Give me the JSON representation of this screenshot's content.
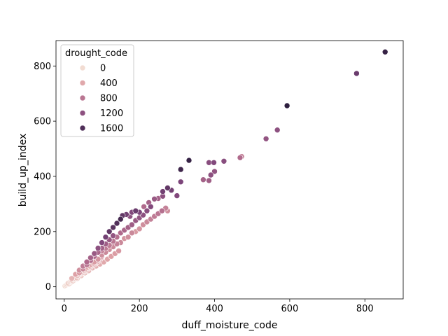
{
  "chart_data": {
    "type": "scatter",
    "title": "",
    "xlabel": "duff_moisture_code",
    "ylabel": "build_up_index",
    "xlim": [
      -22,
      902
    ],
    "ylim": [
      -44,
      892
    ],
    "x_ticks": [
      0,
      200,
      400,
      600,
      800
    ],
    "y_ticks": [
      0,
      200,
      400,
      600,
      800
    ],
    "grid": false,
    "legend": {
      "title": "drought_code",
      "placement": "top-left",
      "entries": [
        {
          "label": "0",
          "value": 0
        },
        {
          "label": "400",
          "value": 400
        },
        {
          "label": "800",
          "value": 800
        },
        {
          "label": "1200",
          "value": 1200
        },
        {
          "label": "1600",
          "value": 1600
        }
      ]
    },
    "hue": {
      "field": "drought_code",
      "min": 0,
      "max": 1800,
      "stops": [
        "#f2dcd2",
        "#dea1a6",
        "#b06a8c",
        "#7c457a",
        "#2d1e3e"
      ]
    },
    "points": [
      [
        2,
        3,
        15
      ],
      [
        5,
        6,
        40
      ],
      [
        8,
        9,
        60
      ],
      [
        10,
        13,
        90
      ],
      [
        12,
        10,
        70
      ],
      [
        15,
        18,
        110
      ],
      [
        18,
        20,
        120
      ],
      [
        20,
        24,
        140
      ],
      [
        22,
        20,
        130
      ],
      [
        25,
        28,
        160
      ],
      [
        28,
        30,
        170
      ],
      [
        30,
        35,
        190
      ],
      [
        33,
        32,
        200
      ],
      [
        35,
        40,
        220
      ],
      [
        38,
        38,
        210
      ],
      [
        40,
        45,
        250
      ],
      [
        42,
        50,
        280
      ],
      [
        45,
        48,
        270
      ],
      [
        48,
        55,
        300
      ],
      [
        50,
        52,
        290
      ],
      [
        52,
        60,
        330
      ],
      [
        55,
        58,
        320
      ],
      [
        58,
        65,
        350
      ],
      [
        60,
        62,
        340
      ],
      [
        62,
        70,
        380
      ],
      [
        65,
        68,
        370
      ],
      [
        68,
        75,
        400
      ],
      [
        70,
        72,
        390
      ],
      [
        72,
        80,
        420
      ],
      [
        75,
        78,
        410
      ],
      [
        78,
        85,
        440
      ],
      [
        80,
        82,
        430
      ],
      [
        82,
        90,
        460
      ],
      [
        85,
        88,
        450
      ],
      [
        88,
        95,
        480
      ],
      [
        90,
        92,
        470
      ],
      [
        92,
        100,
        500
      ],
      [
        95,
        98,
        490
      ],
      [
        98,
        105,
        520
      ],
      [
        100,
        110,
        540
      ],
      [
        15,
        12,
        60
      ],
      [
        25,
        22,
        100
      ],
      [
        35,
        30,
        150
      ],
      [
        45,
        40,
        190
      ],
      [
        55,
        50,
        240
      ],
      [
        65,
        58,
        270
      ],
      [
        75,
        68,
        310
      ],
      [
        85,
        75,
        340
      ],
      [
        95,
        82,
        360
      ],
      [
        105,
        90,
        390
      ],
      [
        115,
        100,
        420
      ],
      [
        125,
        110,
        460
      ],
      [
        135,
        120,
        480
      ],
      [
        145,
        130,
        520
      ],
      [
        150,
        160,
        650
      ],
      [
        20,
        30,
        300
      ],
      [
        30,
        45,
        450
      ],
      [
        40,
        60,
        600
      ],
      [
        50,
        75,
        750
      ],
      [
        60,
        90,
        900
      ],
      [
        70,
        105,
        1000
      ],
      [
        80,
        120,
        1100
      ],
      [
        90,
        140,
        1200
      ],
      [
        100,
        160,
        1300
      ],
      [
        110,
        180,
        1400
      ],
      [
        120,
        200,
        1500
      ],
      [
        130,
        215,
        1550
      ],
      [
        140,
        230,
        1600
      ],
      [
        150,
        245,
        1650
      ],
      [
        155,
        258,
        1500
      ],
      [
        165,
        262,
        1400
      ],
      [
        175,
        255,
        1200
      ],
      [
        180,
        270,
        1300
      ],
      [
        190,
        275,
        1450
      ],
      [
        200,
        270,
        1350
      ],
      [
        40,
        50,
        500
      ],
      [
        50,
        65,
        650
      ],
      [
        60,
        80,
        800
      ],
      [
        70,
        95,
        850
      ],
      [
        80,
        110,
        900
      ],
      [
        90,
        125,
        950
      ],
      [
        100,
        140,
        1000
      ],
      [
        110,
        155,
        1050
      ],
      [
        120,
        170,
        1100
      ],
      [
        130,
        185,
        1150
      ],
      [
        100,
        130,
        700
      ],
      [
        110,
        140,
        750
      ],
      [
        120,
        150,
        750
      ],
      [
        130,
        165,
        800
      ],
      [
        140,
        180,
        850
      ],
      [
        150,
        195,
        900
      ],
      [
        160,
        205,
        950
      ],
      [
        170,
        215,
        1000
      ],
      [
        180,
        225,
        1050
      ],
      [
        190,
        240,
        1100
      ],
      [
        200,
        250,
        1150
      ],
      [
        210,
        260,
        1200
      ],
      [
        220,
        275,
        1250
      ],
      [
        230,
        290,
        1300
      ],
      [
        80,
        90,
        500
      ],
      [
        90,
        100,
        550
      ],
      [
        100,
        115,
        600
      ],
      [
        110,
        125,
        650
      ],
      [
        120,
        135,
        600
      ],
      [
        130,
        145,
        650
      ],
      [
        140,
        155,
        700
      ],
      [
        150,
        160,
        500
      ],
      [
        160,
        175,
        550
      ],
      [
        170,
        180,
        600
      ],
      [
        180,
        195,
        650
      ],
      [
        190,
        200,
        500
      ],
      [
        200,
        210,
        550
      ],
      [
        210,
        225,
        600
      ],
      [
        220,
        235,
        650
      ],
      [
        230,
        245,
        700
      ],
      [
        240,
        255,
        750
      ],
      [
        250,
        265,
        800
      ],
      [
        260,
        275,
        850
      ],
      [
        270,
        285,
        700
      ],
      [
        275,
        275,
        600
      ],
      [
        212,
        290,
        900
      ],
      [
        225,
        305,
        1000
      ],
      [
        240,
        318,
        1100
      ],
      [
        250,
        320,
        1000
      ],
      [
        262,
        328,
        1200
      ],
      [
        262,
        345,
        1400
      ],
      [
        275,
        358,
        1500
      ],
      [
        285,
        350,
        1400
      ],
      [
        300,
        330,
        1300
      ],
      [
        310,
        380,
        1350
      ],
      [
        310,
        425,
        1700
      ],
      [
        332,
        458,
        1750
      ],
      [
        370,
        388,
        1000
      ],
      [
        385,
        385,
        1050
      ],
      [
        385,
        450,
        1250
      ],
      [
        390,
        405,
        1200
      ],
      [
        398,
        450,
        1300
      ],
      [
        400,
        418,
        1150
      ],
      [
        425,
        455,
        1250
      ],
      [
        468,
        468,
        900
      ],
      [
        472,
        472,
        700
      ],
      [
        537,
        536,
        1150
      ],
      [
        567,
        568,
        1200
      ],
      [
        593,
        656,
        1800
      ],
      [
        778,
        773,
        1450
      ],
      [
        854,
        851,
        1750
      ]
    ]
  }
}
